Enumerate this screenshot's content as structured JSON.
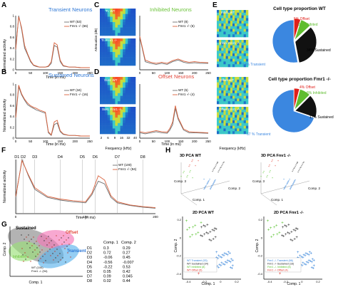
{
  "colors": {
    "wt": "#6e6e6e",
    "ko": "#d9603b",
    "title_blue": "#2f78d6",
    "title_green": "#6cc33a",
    "title_red": "#e1463a",
    "pie_blue": "#3b87e0",
    "pie_black": "#111111",
    "pie_green": "#5fbd2f",
    "pie_red": "#e0201b",
    "pca_blue": "#2e7fd8",
    "pca_black": "#222222",
    "pca_green": "#55c22a",
    "pca_red": "#e03024"
  },
  "panels": {
    "A": {
      "letter": "A",
      "title": "Transient Neurons",
      "ylabel": "Normalized activity",
      "xlabel": "Time (in ms)",
      "legend": [
        "WT (53)",
        "Fmr1 -/- (66)"
      ],
      "yticks": [
        "0",
        "0.2",
        "0.4",
        "0.6",
        "0.8",
        "1"
      ],
      "xticks": [
        "0",
        "50",
        "100",
        "150",
        "200",
        "250"
      ]
    },
    "B": {
      "letter": "B",
      "title": "Sustained Neurons",
      "ylabel": "Normalized activity",
      "xlabel": "Time (in ms)",
      "legend": [
        "WT (34)",
        "Fmr1 -/- (16)"
      ],
      "yticks": [
        "0",
        "0.2",
        "0.4",
        "0.6",
        "0.8",
        "1"
      ],
      "xticks": [
        "0",
        "50",
        "100",
        "150",
        "200",
        "250"
      ]
    },
    "C": {
      "letter": "C",
      "title": "Inhibited Neurons",
      "map_labels": [
        "Tr. WT",
        "Tr. Fmr1 -/-"
      ],
      "legend": [
        "WT (8)",
        "Fmr1 -/- (6)"
      ],
      "ylabel": "Attenuation (dB)",
      "xticks": [
        "0",
        "50",
        "100",
        "150",
        "200",
        "250"
      ]
    },
    "D": {
      "letter": "D",
      "title": "Offset Neurons",
      "map_labels": [
        "Sust. WT",
        "Sust. Fmr1 -/-"
      ],
      "legend": [
        "WT (5)",
        "Fmr1 -/- (4)"
      ],
      "xlabel_map": "Frequency (kHz)",
      "xticks_map": [
        "2",
        "6",
        "9",
        "16",
        "32",
        "40"
      ],
      "xlabel": "Time (in ms)",
      "xticks": [
        "0",
        "50",
        "100",
        "150",
        "200",
        "250"
      ]
    },
    "E": {
      "letter": "E",
      "map_labels": [
        "Inhib. WT",
        "Inhib. Fmr1 -/-",
        "Offset WT",
        "Offset Fmr1 -/-"
      ],
      "xlabel_map": "Frequency (kHz)",
      "pie_wt": {
        "title": "Cell type proportion WT",
        "labels": [
          "53% Transient",
          "34% Sustained",
          "8% Inhibited",
          "5% Offset"
        ],
        "values": [
          53,
          34,
          8,
          5
        ]
      },
      "pie_ko": {
        "title": "Cell type proportion Fmr1 -/-",
        "labels": [
          "67 % Transient",
          "17% Sustained",
          "8% Inhibited",
          "4% Offset"
        ],
        "values": [
          67,
          17,
          8,
          4
        ]
      }
    },
    "F": {
      "letter": "F",
      "dims": [
        "D1",
        "D2",
        "D3",
        "D4",
        "D5",
        "D6",
        "D7",
        "D8"
      ],
      "ylabel": "Normalized activity",
      "xlabel": "Time (in ms)",
      "legend": [
        "WT (100)",
        "Fmr1 -/- (94)"
      ],
      "xticks": [
        "0",
        "100",
        "200"
      ]
    },
    "G": {
      "letter": "G",
      "labels": [
        "Sustained",
        "Offset",
        "Inhibited",
        "Transient"
      ],
      "axis_labels": [
        "Comp. 1",
        "Comp. 2"
      ],
      "legend": [
        "WT (100)",
        "Fmr1 -/- (94)"
      ],
      "table": {
        "header": [
          "",
          "Comp. 1",
          "Comp. 2"
        ],
        "rows": [
          [
            "D1",
            "0.3",
            "0.29"
          ],
          [
            "D2",
            "0.72",
            "0.27"
          ],
          [
            "D3",
            "-0.06",
            "0.45"
          ],
          [
            "D4",
            "-0.56",
            "-0.007"
          ],
          [
            "D5",
            "-0.22",
            "0.53"
          ],
          [
            "D6",
            "0.05",
            "0.42"
          ],
          [
            "D7",
            "0.09",
            "0.045"
          ],
          [
            "D8",
            "0.02",
            "0.44"
          ]
        ]
      }
    },
    "H": {
      "letter": "H",
      "titles": [
        "3D PCA WT",
        "3D PCA Fmr1 -/-",
        "2D PCA WT",
        "2D PCA Fmr1 -/-"
      ],
      "axis": [
        "Comp. 1",
        "Comp. 2",
        "Comp. 3"
      ],
      "legend_wt": [
        "WT Transient (53)",
        "WT Sustained (34)",
        "WT Inhibited (8)",
        "WT Offset (5)"
      ],
      "legend_ko": [
        "Fmr1 -/- Transient (66)",
        "Fmr1 -/- Sustained (16)",
        "Fmr1 -/- Inhibited (8)",
        "Fmr1 -/- Offset (4)"
      ],
      "xticks": [
        "-0.4",
        "-0.2",
        "0",
        "0.2"
      ],
      "yticks": [
        "-0.4",
        "-0.2",
        "0",
        "0.2"
      ]
    }
  },
  "chart_data": [
    {
      "type": "line",
      "panel": "A",
      "x": [
        0,
        10,
        20,
        30,
        40,
        50,
        60,
        70,
        80,
        100,
        110,
        120,
        130,
        140,
        150,
        160,
        180,
        200,
        220,
        250
      ],
      "series": [
        {
          "name": "WT (53)",
          "values": [
            0.35,
            1.0,
            0.75,
            0.4,
            0.28,
            0.15,
            0.08,
            0.06,
            0.05,
            0.05,
            0.06,
            0.12,
            0.45,
            0.42,
            0.15,
            0.07,
            0.05,
            0.05,
            0.04,
            0.04
          ]
        },
        {
          "name": "Fmr1 -/- (66)",
          "values": [
            0.38,
            0.98,
            0.78,
            0.45,
            0.3,
            0.17,
            0.09,
            0.07,
            0.05,
            0.05,
            0.07,
            0.15,
            0.5,
            0.46,
            0.18,
            0.08,
            0.05,
            0.05,
            0.04,
            0.04
          ]
        }
      ],
      "ylim": [
        0,
        1
      ]
    },
    {
      "type": "line",
      "panel": "B",
      "x": [
        0,
        10,
        20,
        30,
        40,
        50,
        60,
        70,
        80,
        100,
        110,
        120,
        130,
        140,
        150,
        160,
        180,
        200,
        220,
        250
      ],
      "series": [
        {
          "name": "WT (34)",
          "values": [
            0.35,
            0.95,
            0.8,
            0.7,
            0.62,
            0.58,
            0.55,
            0.52,
            0.5,
            0.46,
            0.1,
            0.05,
            0.25,
            0.28,
            0.12,
            0.07,
            0.05,
            0.05,
            0.04,
            0.04
          ]
        },
        {
          "name": "Fmr1 -/- (16)",
          "values": [
            0.38,
            0.98,
            0.82,
            0.72,
            0.65,
            0.6,
            0.57,
            0.55,
            0.52,
            0.48,
            0.12,
            0.06,
            0.3,
            0.33,
            0.14,
            0.08,
            0.05,
            0.05,
            0.04,
            0.04
          ]
        }
      ],
      "ylim": [
        0,
        1
      ]
    },
    {
      "type": "line",
      "panel": "C",
      "x": [
        0,
        20,
        40,
        60,
        80,
        100,
        120,
        140,
        160,
        180,
        200,
        220,
        250
      ],
      "series": [
        {
          "name": "WT (8)",
          "values": [
            0.6,
            0.15,
            0.12,
            0.1,
            0.12,
            0.1,
            0.15,
            0.18,
            0.14,
            0.12,
            0.13,
            0.12,
            0.12
          ]
        },
        {
          "name": "Fmr1 -/- (6)",
          "values": [
            0.62,
            0.18,
            0.14,
            0.12,
            0.14,
            0.12,
            0.17,
            0.2,
            0.16,
            0.14,
            0.15,
            0.14,
            0.13
          ]
        }
      ],
      "ylim": [
        0,
        1
      ]
    },
    {
      "type": "line",
      "panel": "D",
      "x": [
        0,
        20,
        40,
        60,
        80,
        100,
        110,
        120,
        130,
        140,
        160,
        180,
        200,
        250
      ],
      "series": [
        {
          "name": "WT (5)",
          "values": [
            0.1,
            0.08,
            0.1,
            0.12,
            0.1,
            0.09,
            0.15,
            0.25,
            0.55,
            0.35,
            0.15,
            0.1,
            0.1,
            0.09
          ]
        },
        {
          "name": "Fmr1 -/- (4)",
          "values": [
            0.12,
            0.1,
            0.12,
            0.14,
            0.12,
            0.11,
            0.18,
            0.3,
            0.6,
            0.38,
            0.17,
            0.12,
            0.11,
            0.1
          ]
        }
      ],
      "ylim": [
        0,
        1
      ]
    },
    {
      "type": "pie",
      "panel": "E-WT",
      "categories": [
        "Transient",
        "Sustained",
        "Inhibited",
        "Offset"
      ],
      "values": [
        53,
        34,
        8,
        5
      ]
    },
    {
      "type": "pie",
      "panel": "E-Fmr1",
      "categories": [
        "Transient",
        "Sustained",
        "Inhibited",
        "Offset"
      ],
      "values": [
        67,
        17,
        8,
        4
      ]
    },
    {
      "type": "line",
      "panel": "F",
      "x": [
        0,
        10,
        20,
        30,
        50,
        70,
        90,
        110,
        120,
        130,
        140,
        150,
        160,
        180,
        200,
        220
      ],
      "series": [
        {
          "name": "WT (100)",
          "values": [
            0.3,
            1.0,
            0.7,
            0.45,
            0.3,
            0.25,
            0.22,
            0.2,
            0.35,
            0.6,
            0.55,
            0.3,
            0.2,
            0.15,
            0.12,
            0.1
          ]
        },
        {
          "name": "Fmr1 -/- (94)",
          "values": [
            0.32,
            0.98,
            0.72,
            0.48,
            0.32,
            0.27,
            0.24,
            0.22,
            0.38,
            0.7,
            0.62,
            0.33,
            0.22,
            0.16,
            0.13,
            0.11
          ]
        }
      ],
      "ylim": [
        0,
        1
      ]
    }
  ]
}
